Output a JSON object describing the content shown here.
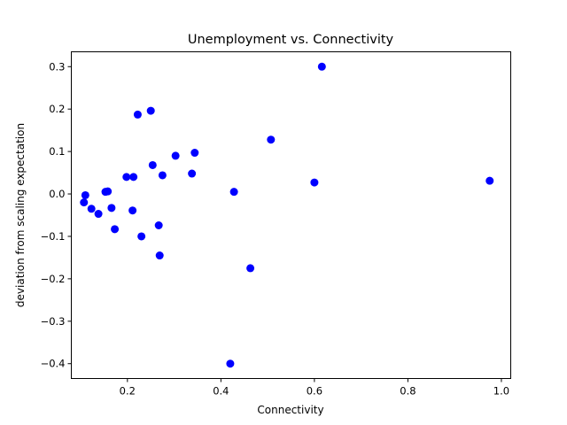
{
  "chart_data": {
    "type": "scatter",
    "title": "Unemployment vs. Connectivity",
    "xlabel": "Connectivity",
    "ylabel": "deviation from scaling expectation",
    "xlim": [
      0.08,
      1.02
    ],
    "ylim": [
      -0.435,
      0.335
    ],
    "xticks": [
      0.2,
      0.4,
      0.6,
      0.8,
      1.0
    ],
    "xtick_labels": [
      "0.2",
      "0.4",
      "0.6",
      "0.8",
      "1.0"
    ],
    "yticks": [
      -0.4,
      -0.3,
      -0.2,
      -0.1,
      0.0,
      0.1,
      0.2,
      0.3
    ],
    "ytick_labels": [
      "−0.4",
      "−0.3",
      "−0.2",
      "−0.1",
      "0.0",
      "0.1",
      "0.2",
      "0.3"
    ],
    "grid": false,
    "series": [
      {
        "color": "#0000ff",
        "points": [
          {
            "x": 0.107,
            "y": -0.02
          },
          {
            "x": 0.11,
            "y": -0.003
          },
          {
            "x": 0.123,
            "y": -0.035
          },
          {
            "x": 0.138,
            "y": -0.047
          },
          {
            "x": 0.153,
            "y": 0.005
          },
          {
            "x": 0.158,
            "y": 0.006
          },
          {
            "x": 0.166,
            "y": -0.033
          },
          {
            "x": 0.173,
            "y": -0.083
          },
          {
            "x": 0.198,
            "y": 0.04
          },
          {
            "x": 0.211,
            "y": -0.039
          },
          {
            "x": 0.213,
            "y": 0.04
          },
          {
            "x": 0.222,
            "y": 0.187
          },
          {
            "x": 0.23,
            "y": -0.1
          },
          {
            "x": 0.25,
            "y": 0.196
          },
          {
            "x": 0.254,
            "y": 0.068
          },
          {
            "x": 0.267,
            "y": -0.074
          },
          {
            "x": 0.269,
            "y": -0.145
          },
          {
            "x": 0.275,
            "y": 0.044
          },
          {
            "x": 0.303,
            "y": 0.09
          },
          {
            "x": 0.338,
            "y": 0.048
          },
          {
            "x": 0.344,
            "y": 0.097
          },
          {
            "x": 0.42,
            "y": -0.4
          },
          {
            "x": 0.428,
            "y": 0.005
          },
          {
            "x": 0.463,
            "y": -0.175
          },
          {
            "x": 0.507,
            "y": 0.128
          },
          {
            "x": 0.6,
            "y": 0.027
          },
          {
            "x": 0.616,
            "y": 0.3
          },
          {
            "x": 0.975,
            "y": 0.031
          }
        ]
      }
    ]
  }
}
